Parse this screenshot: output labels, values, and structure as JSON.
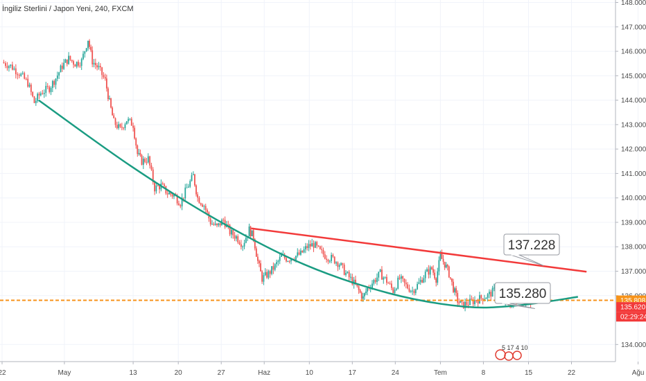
{
  "chart_data": {
    "type": "candlestick",
    "title": "İngiliz Sterlini / Japon Yeni, 240, FXCM",
    "xlabel": "",
    "ylabel": "",
    "ylim": [
      133.3,
      148.1
    ],
    "xlim": [
      0,
      320
    ],
    "y_ticks": [
      {
        "label": "148.000",
        "value": 148.0
      },
      {
        "label": "147.000",
        "value": 147.0
      },
      {
        "label": "146.000",
        "value": 146.0
      },
      {
        "label": "145.000",
        "value": 145.0
      },
      {
        "label": "144.000",
        "value": 144.0
      },
      {
        "label": "143.000",
        "value": 143.0
      },
      {
        "label": "142.000",
        "value": 142.0
      },
      {
        "label": "141.000",
        "value": 141.0
      },
      {
        "label": "140.000",
        "value": 140.0
      },
      {
        "label": "139.000",
        "value": 139.0
      },
      {
        "label": "138.000",
        "value": 138.0
      },
      {
        "label": "137.000",
        "value": 137.0
      },
      {
        "label": "136.000",
        "value": 136.0
      },
      {
        "label": "134.000",
        "value": 134.0
      }
    ],
    "x_ticks": [
      {
        "label": "22",
        "x": 0
      },
      {
        "label": "May",
        "x": 29
      },
      {
        "label": "13",
        "x": 61
      },
      {
        "label": "20",
        "x": 82
      },
      {
        "label": "27",
        "x": 102
      },
      {
        "label": "Haz",
        "x": 122
      },
      {
        "label": "10",
        "x": 143
      },
      {
        "label": "17",
        "x": 163
      },
      {
        "label": "24",
        "x": 183
      },
      {
        "label": "Tem",
        "x": 204
      },
      {
        "label": "8",
        "x": 224
      },
      {
        "label": "15",
        "x": 245
      },
      {
        "label": "22",
        "x": 265
      },
      {
        "label": "Ağu",
        "x": 296
      }
    ],
    "price_path": [
      [
        0,
        145.55
      ],
      [
        4,
        145.4
      ],
      [
        8,
        145.1
      ],
      [
        12,
        144.7
      ],
      [
        15,
        143.9
      ],
      [
        18,
        144.3
      ],
      [
        22,
        144.5
      ],
      [
        25,
        144.9
      ],
      [
        28,
        145.4
      ],
      [
        31,
        145.7
      ],
      [
        34,
        145.5
      ],
      [
        37,
        145.6
      ],
      [
        40,
        146.5
      ],
      [
        42,
        145.6
      ],
      [
        45,
        145.3
      ],
      [
        48,
        144.8
      ],
      [
        50,
        143.9
      ],
      [
        52,
        143.1
      ],
      [
        55,
        142.8
      ],
      [
        58,
        143.2
      ],
      [
        61,
        143.0
      ],
      [
        63,
        141.8
      ],
      [
        65,
        141.5
      ],
      [
        68,
        141.6
      ],
      [
        71,
        140.4
      ],
      [
        74,
        140.5
      ],
      [
        77,
        140.2
      ],
      [
        80,
        140.1
      ],
      [
        83,
        139.8
      ],
      [
        86,
        140.4
      ],
      [
        89,
        140.9
      ],
      [
        91,
        140.0
      ],
      [
        94,
        139.7
      ],
      [
        97,
        139.0
      ],
      [
        100,
        138.8
      ],
      [
        103,
        139.1
      ],
      [
        106,
        138.6
      ],
      [
        109,
        138.4
      ],
      [
        112,
        138.1
      ],
      [
        115,
        138.7
      ],
      [
        117,
        138.4
      ],
      [
        119,
        137.4
      ],
      [
        121,
        136.7
      ],
      [
        124,
        136.9
      ],
      [
        127,
        137.2
      ],
      [
        130,
        137.6
      ],
      [
        133,
        137.5
      ],
      [
        136,
        137.6
      ],
      [
        139,
        137.7
      ],
      [
        142,
        138.0
      ],
      [
        145,
        138.1
      ],
      [
        148,
        137.8
      ],
      [
        151,
        137.6
      ],
      [
        154,
        137.5
      ],
      [
        157,
        137.3
      ],
      [
        160,
        136.9
      ],
      [
        163,
        136.6
      ],
      [
        166,
        136.2
      ],
      [
        168,
        135.9
      ],
      [
        170,
        136.3
      ],
      [
        173,
        136.6
      ],
      [
        176,
        136.9
      ],
      [
        179,
        136.6
      ],
      [
        182,
        136.2
      ],
      [
        185,
        136.7
      ],
      [
        188,
        136.4
      ],
      [
        191,
        136.2
      ],
      [
        194,
        136.5
      ],
      [
        197,
        136.9
      ],
      [
        200,
        137.1
      ],
      [
        202,
        136.7
      ],
      [
        204,
        137.6
      ],
      [
        206,
        137.3
      ],
      [
        208,
        136.9
      ],
      [
        210,
        136.3
      ],
      [
        212,
        135.8
      ],
      [
        214,
        135.6
      ],
      [
        217,
        135.7
      ],
      [
        220,
        135.8
      ],
      [
        223,
        135.9
      ],
      [
        226,
        136.0
      ],
      [
        229,
        136.2
      ],
      [
        232,
        135.8
      ],
      [
        235,
        135.7
      ],
      [
        238,
        135.6
      ],
      [
        240,
        135.9
      ],
      [
        243,
        135.8
      ],
      [
        246,
        135.62
      ]
    ],
    "annotations": {
      "resistance_line": {
        "color": "#f23a3a",
        "from": [
          116,
          138.75
        ],
        "to": [
          272,
          136.98
        ]
      },
      "support_curve": {
        "color": "#1a9c82",
        "points": [
          [
            17,
            144.0
          ],
          [
            60,
            141.3
          ],
          [
            100,
            139.1
          ],
          [
            140,
            137.3
          ],
          [
            180,
            136.1
          ],
          [
            215,
            135.55
          ],
          [
            240,
            135.6
          ],
          [
            268,
            135.95
          ]
        ]
      },
      "label_high": {
        "text": "137.228",
        "anchor": [
          252,
          137.228
        ]
      },
      "label_low": {
        "text": "135.280",
        "anchor": [
          248,
          135.47
        ]
      }
    },
    "horizontal_line": {
      "value": 135.808,
      "color": "#f7931a",
      "style": "dashed"
    },
    "price_badges": [
      {
        "label": "135.808",
        "value": 135.808,
        "color": "#f7931a"
      },
      {
        "label": "135.620",
        "value": 135.62,
        "color": "#f23a3a"
      },
      {
        "label": "02:29:24",
        "value": 135.28,
        "color": "#f23a3a"
      }
    ],
    "colors": {
      "up": "#26a69a",
      "down": "#ef5350"
    }
  },
  "logo": {
    "label": "5 17 4 10"
  }
}
